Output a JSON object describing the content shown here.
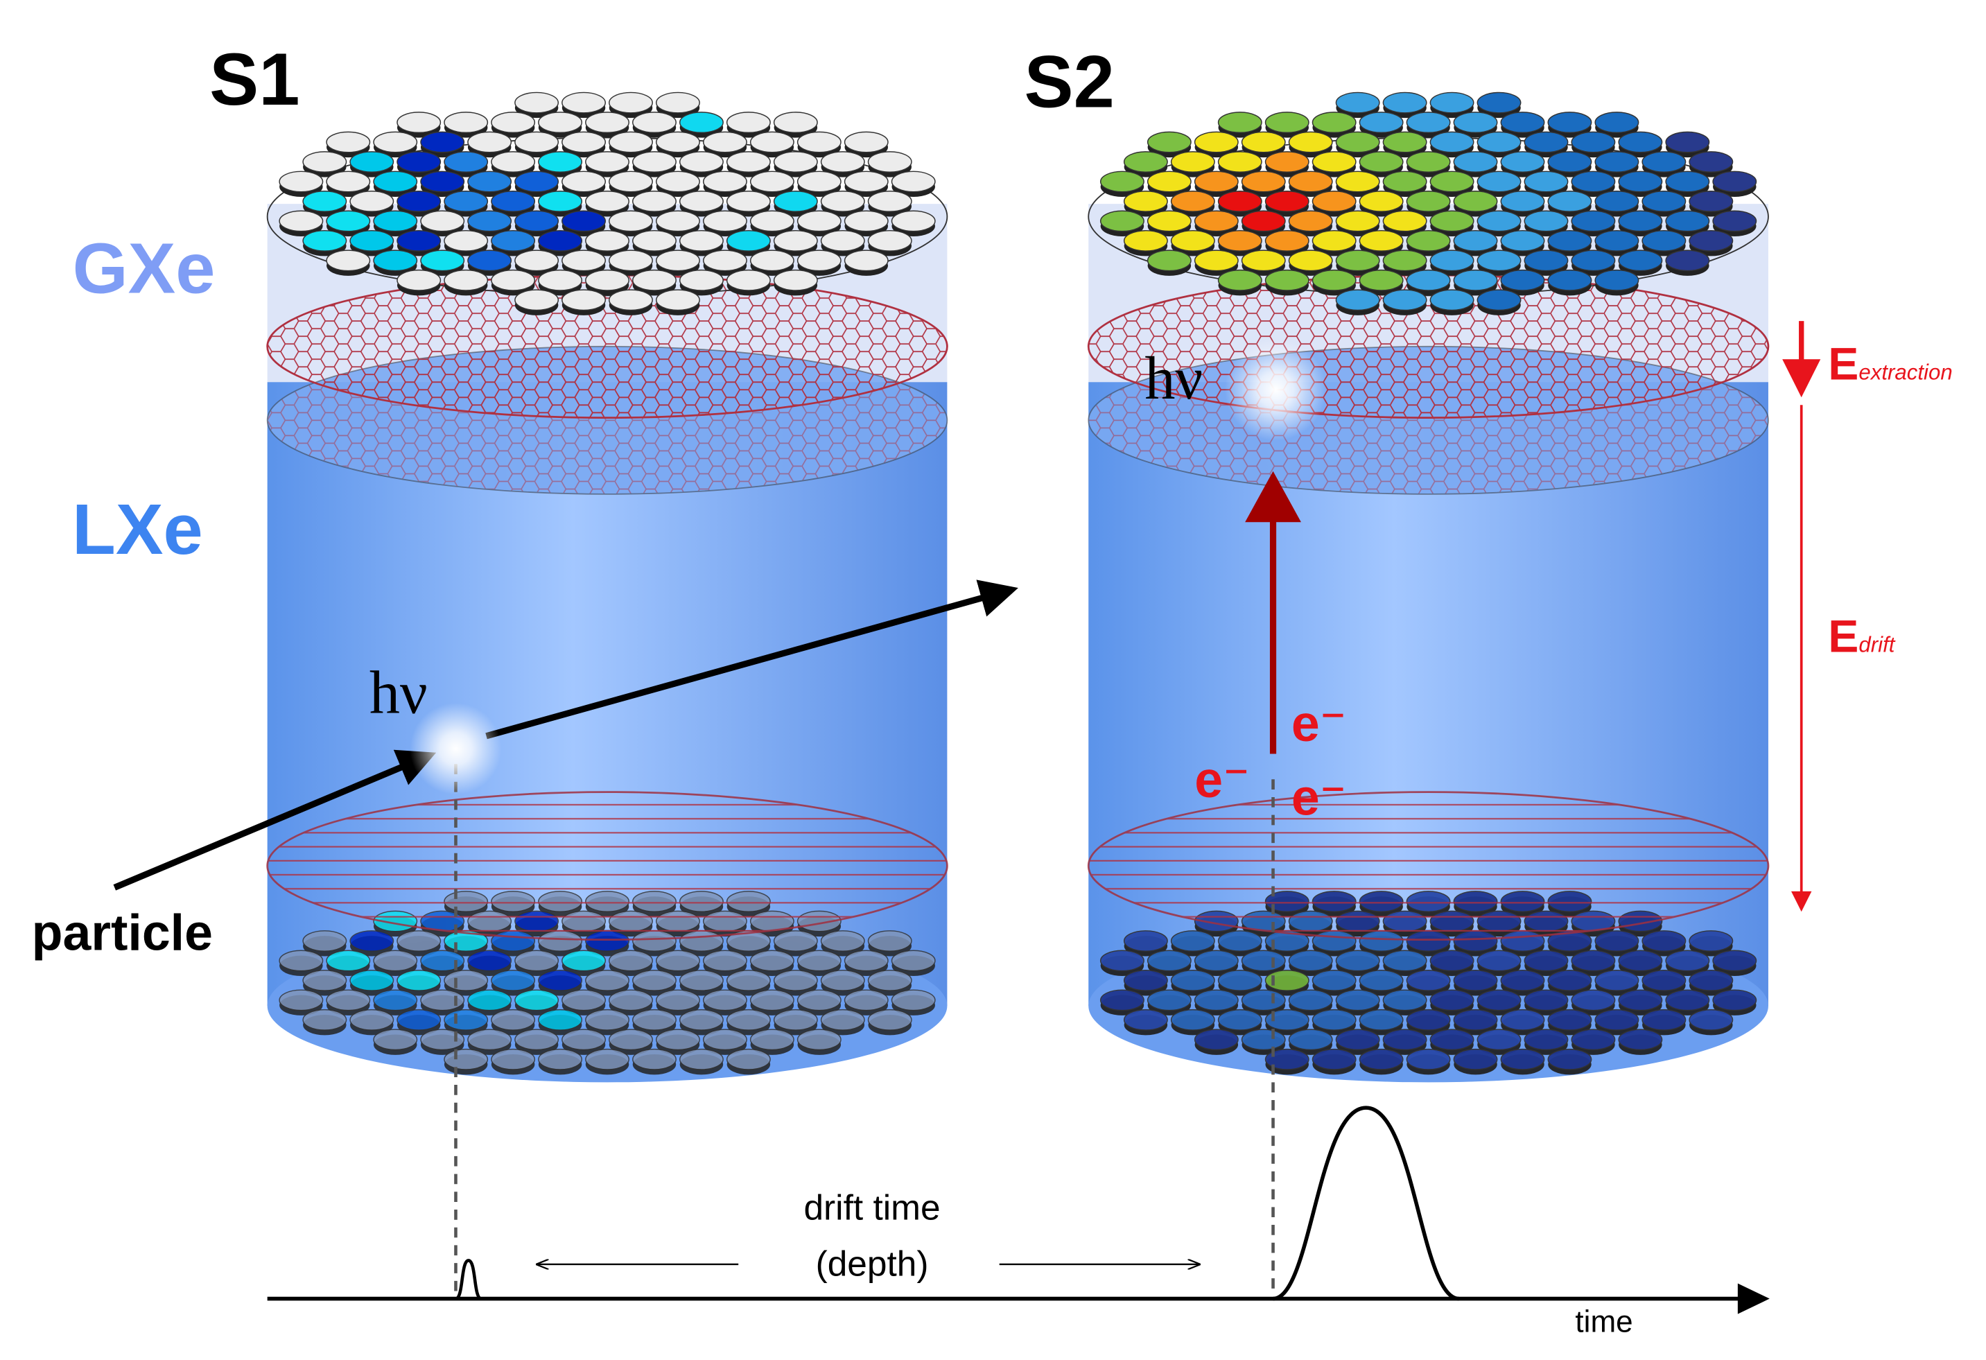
{
  "labels": {
    "s1": "S1",
    "s2": "S2",
    "gas": "GXe",
    "liquid": "LXe",
    "photon_s1": "hν",
    "photon_s2": "hν",
    "particle": "particle",
    "electrons": [
      "e⁻",
      "e⁻",
      "e⁻"
    ],
    "extraction_field": {
      "symbol": "E",
      "subscript": "extraction"
    },
    "drift_field": {
      "symbol": "E",
      "subscript": "drift"
    },
    "drift_time": "drift time",
    "depth": "(depth)",
    "time_axis": "time"
  }
}
